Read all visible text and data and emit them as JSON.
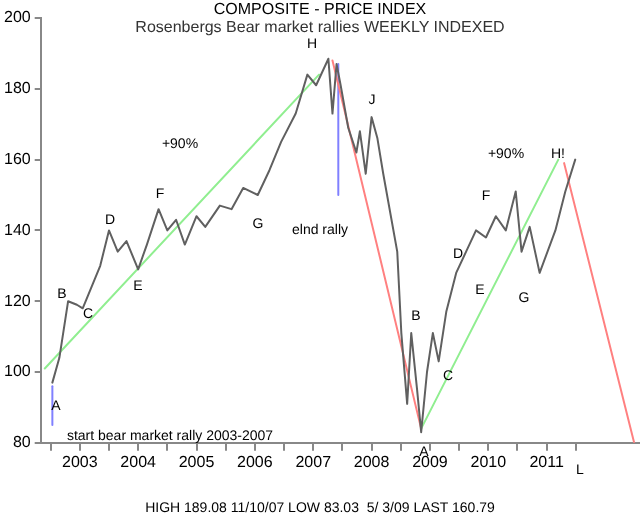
{
  "chart_data": {
    "type": "line",
    "title": "COMPOSITE - PRICE INDEX",
    "subtitle": "Rosenbergs Bear market rallies WEEKLY INDEXED",
    "xlim": [
      2002.83,
      2013.1
    ],
    "ylim": [
      80,
      200
    ],
    "yticks": [
      80,
      100,
      120,
      140,
      160,
      180,
      200
    ],
    "xticks": [
      {
        "value": 2003,
        "label": null
      },
      {
        "value": 2003.5,
        "label": "2003"
      },
      {
        "value": 2004,
        "label": null
      },
      {
        "value": 2004.5,
        "label": "2004"
      },
      {
        "value": 2005,
        "label": null
      },
      {
        "value": 2005.5,
        "label": "2005"
      },
      {
        "value": 2006,
        "label": null
      },
      {
        "value": 2006.5,
        "label": "2006"
      },
      {
        "value": 2007,
        "label": null
      },
      {
        "value": 2007.5,
        "label": "2007"
      },
      {
        "value": 2008,
        "label": null
      },
      {
        "value": 2008.5,
        "label": "2008"
      },
      {
        "value": 2009,
        "label": null
      },
      {
        "value": 2009.5,
        "label": "2009"
      },
      {
        "value": 2010,
        "label": null
      },
      {
        "value": 2010.5,
        "label": "2010"
      },
      {
        "value": 2011,
        "label": null
      },
      {
        "value": 2011.5,
        "label": "2011"
      },
      {
        "value": 2012,
        "label": null
      }
    ],
    "grid": false,
    "legend": false,
    "marker": "none",
    "line_style": "solid",
    "series": [
      {
        "color": "#606060",
        "x": [
          2003.03,
          2003.15,
          2003.3,
          2003.45,
          2003.55,
          2003.7,
          2003.85,
          2004.0,
          2004.15,
          2004.3,
          2004.5,
          2004.65,
          2004.85,
          2005.0,
          2005.15,
          2005.3,
          2005.5,
          2005.65,
          2005.9,
          2006.1,
          2006.3,
          2006.55,
          2006.75,
          2006.95,
          2007.2,
          2007.4,
          2007.55,
          2007.76,
          2007.83,
          2007.9,
          2007.97,
          2008.1,
          2008.24,
          2008.3,
          2008.4,
          2008.5,
          2008.6,
          2008.7,
          2008.94,
          2009.01,
          2009.11,
          2009.18,
          2009.28,
          2009.35,
          2009.45,
          2009.55,
          2009.65,
          2009.78,
          2009.95,
          2010.12,
          2010.29,
          2010.46,
          2010.63,
          2010.8,
          2010.97,
          2011.07,
          2011.21,
          2011.38,
          2011.65,
          2011.82,
          2011.99
        ],
        "values": [
          97,
          104,
          120,
          119,
          118,
          124,
          130,
          140,
          134,
          137,
          129,
          136,
          146,
          140,
          143,
          136,
          144,
          141,
          147,
          146,
          152,
          150,
          157,
          165,
          173,
          184,
          181,
          188.5,
          173,
          187,
          181,
          169,
          162,
          168,
          156,
          172,
          166,
          156,
          134,
          111,
          91,
          111,
          95,
          83,
          100,
          111,
          103,
          117,
          128,
          134,
          140,
          138,
          144,
          140,
          151,
          134,
          141,
          128,
          140,
          151,
          160
        ]
      },
      {
        "color": "#90ee90",
        "x": [
          2002.9,
          2007.6
        ],
        "values": [
          101,
          184
        ]
      },
      {
        "color": "#90ee90",
        "x": [
          2009.35,
          2011.7
        ],
        "values": [
          84,
          160
        ]
      },
      {
        "color": "#ff8080",
        "x": [
          2007.83,
          2009.35
        ],
        "values": [
          188,
          84
        ]
      },
      {
        "color": "#ff8080",
        "x": [
          2011.8,
          2013.0
        ],
        "values": [
          159,
          80
        ]
      },
      {
        "color": "#8080ff",
        "x": [
          2007.93,
          2007.93
        ],
        "values": [
          187,
          150
        ]
      },
      {
        "color": "#8080ff",
        "x": [
          2003.03,
          2003.03
        ],
        "values": [
          85,
          96
        ]
      }
    ],
    "annotations": [
      "A",
      "B",
      "C",
      "D",
      "E",
      "F",
      "G",
      "H",
      "J",
      "+90%",
      "elnd rally",
      "start bear market rally 2003-2007",
      "A",
      "B",
      "C",
      "D",
      "E",
      "F",
      "G",
      "+90%",
      "H!",
      "L",
      "HIGH 189.08 11/10/07 LOW 83.03  5/ 3/09 LAST 160.79"
    ]
  }
}
